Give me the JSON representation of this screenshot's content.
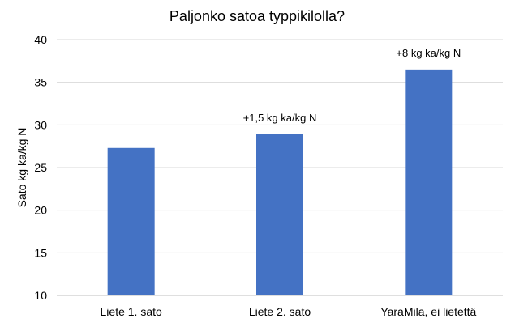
{
  "chart_data": {
    "type": "bar",
    "title": "Paljonko satoa typpikilolla?",
    "xlabel": "",
    "ylabel": "Sato kg ka/kg N",
    "categories": [
      "Liete 1. sato",
      "Liete 2. sato",
      "YaraMila, ei lietettä"
    ],
    "values": [
      27.3,
      28.9,
      36.5
    ],
    "annotations": [
      "",
      "+1,5 kg ka/kg N",
      "+8 kg ka/kg N"
    ],
    "ylim": [
      10,
      40
    ],
    "yticks": [
      10,
      15,
      20,
      25,
      30,
      35,
      40
    ],
    "grid": true,
    "legend": "none",
    "colors": {
      "bar": "#4472C4",
      "grid": "#D9D9D9",
      "axis": "#BFBFBF"
    }
  }
}
